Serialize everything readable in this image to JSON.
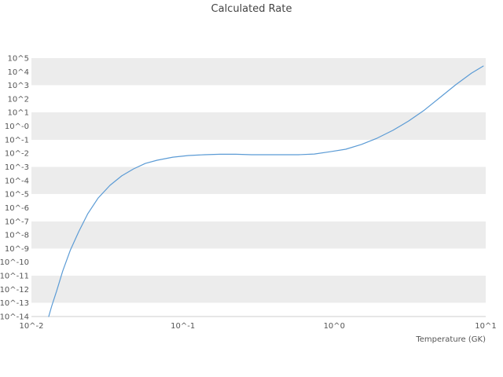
{
  "page": {
    "title": "Calculated Rate"
  },
  "chart_data": {
    "type": "line",
    "title": "Calculated Rate",
    "xlabel": "Temperature (GK)",
    "ylabel": "",
    "x_scale": "log",
    "y_scale": "log",
    "xlim": [
      0.01,
      10
    ],
    "ylim_log10": [
      -14.0,
      5.46
    ],
    "x_tick_labels": [
      "10^-2",
      "10^-1",
      "10^0",
      "10^1"
    ],
    "x_tick_log10": [
      -2,
      -1,
      0,
      1
    ],
    "y_tick_labels": [
      "10^5",
      "10^4",
      "10^3",
      "10^2",
      "10^1",
      "10^-0",
      "10^-1",
      "10^-2",
      "10^-3",
      "10^-4",
      "10^-5",
      "10^-6",
      "10^-7",
      "10^-8",
      "10^-9",
      "10^-10",
      "10^-11",
      "10^-12",
      "10^-13",
      "10^-14"
    ],
    "y_tick_log10": [
      5,
      4,
      3,
      2,
      1,
      0,
      -1,
      -2,
      -3,
      -4,
      -5,
      -6,
      -7,
      -8,
      -9,
      -10,
      -11,
      -12,
      -13,
      -14
    ],
    "grid": "horizontal-bands",
    "legend": "none",
    "bands": {
      "start_log10": 5,
      "height_decades": 2,
      "step_decades": 4
    },
    "style": {
      "line_color": "#5b9bd5",
      "band_color": "#ececec",
      "tick_text_color": "#555555",
      "title_color": "#444444",
      "axis_line_color": "#cccccc"
    },
    "series": [
      {
        "name": "calculated rate",
        "x": [
          0.013,
          0.0136,
          0.0147,
          0.0161,
          0.0181,
          0.0205,
          0.0236,
          0.0276,
          0.033,
          0.0395,
          0.0473,
          0.0565,
          0.0676,
          0.0859,
          0.109,
          0.139,
          0.176,
          0.224,
          0.284,
          0.361,
          0.458,
          0.581,
          0.738,
          0.937,
          1.19,
          1.51,
          1.92,
          2.44,
          3.1,
          3.93,
          5.0,
          6.34,
          8.05,
          9.64
        ],
        "y": [
          1e-14,
          5.6e-14,
          7.9e-13,
          2.2e-11,
          7.9e-10,
          1.7e-08,
          3.7e-07,
          5.2e-06,
          4.4e-05,
          0.00022,
          0.00072,
          0.0018,
          0.0031,
          0.0052,
          0.0069,
          0.0079,
          0.0085,
          0.0085,
          0.0079,
          0.0079,
          0.0079,
          0.0079,
          0.0089,
          0.013,
          0.02,
          0.045,
          0.13,
          0.49,
          2.4,
          15,
          129,
          1100,
          7900,
          26000
        ]
      }
    ]
  }
}
